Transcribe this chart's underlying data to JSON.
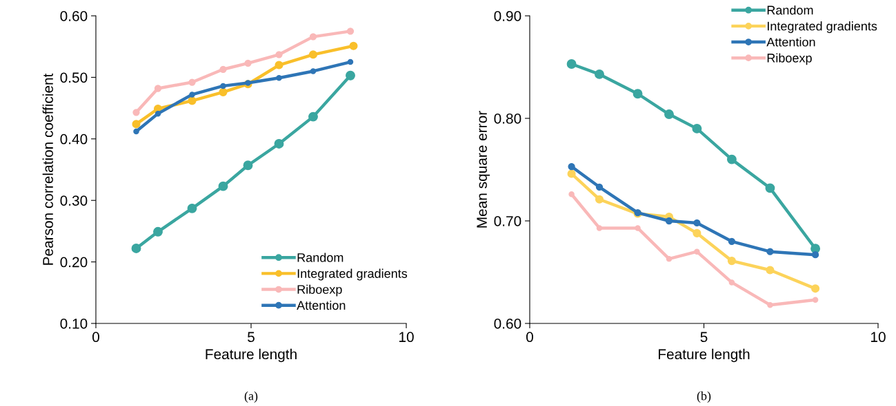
{
  "chart_data": [
    {
      "type": "line",
      "xlabel": "Feature length",
      "ylabel": "Pearson correlation coefficient",
      "annotations": [
        "(a)"
      ],
      "x": [
        1.3,
        2.0,
        3.1,
        4.1,
        4.9,
        5.9,
        7.0,
        8.2
      ],
      "xlim": [
        0,
        10
      ],
      "xticks": [
        0,
        5,
        10
      ],
      "ylim": [
        0.1,
        0.6
      ],
      "yticks": [
        {
          "value": 0.1,
          "label": "0.10"
        },
        {
          "value": 0.2,
          "label": "0.20"
        },
        {
          "value": 0.3,
          "label": "0.30"
        },
        {
          "value": 0.4,
          "label": "0.40"
        },
        {
          "value": 0.5,
          "label": "0.50"
        },
        {
          "value": 0.6,
          "label": "0.60"
        }
      ],
      "legend": "bottom right",
      "marker": "circle",
      "line_style": "solid",
      "series": [
        {
          "name": "Random",
          "color": "#3aa6a0",
          "values": [
            0.222,
            0.249,
            0.287,
            0.323,
            0.357,
            0.392,
            0.436,
            0.503
          ]
        },
        {
          "name": "Integrated gradients",
          "color": "#f9bf2a",
          "x": [
            1.3,
            2.0,
            3.1,
            4.1,
            4.9,
            5.9,
            7.0,
            8.3
          ],
          "values": [
            0.424,
            0.449,
            0.462,
            0.476,
            0.489,
            0.52,
            0.537,
            0.551
          ]
        },
        {
          "name": "Riboexp",
          "color": "#f9b8b8",
          "values": [
            0.443,
            0.482,
            0.492,
            0.513,
            0.523,
            0.537,
            0.566,
            0.575
          ]
        },
        {
          "name": "Attention",
          "color": "#2e75b6",
          "values": [
            0.412,
            0.441,
            0.472,
            0.486,
            0.491,
            0.499,
            0.51,
            0.525
          ]
        }
      ]
    },
    {
      "type": "line",
      "xlabel": "Feature length",
      "ylabel": "Mean square error",
      "annotations": [
        "(b)"
      ],
      "x": [
        1.2,
        2.0,
        3.1,
        4.0,
        4.8,
        5.8,
        6.9,
        8.2
      ],
      "xlim": [
        0,
        10
      ],
      "xticks": [
        0,
        5,
        10
      ],
      "ylim": [
        0.6,
        0.9
      ],
      "yticks": [
        {
          "value": 0.6,
          "label": "0.60"
        },
        {
          "value": 0.7,
          "label": "0.70"
        },
        {
          "value": 0.8,
          "label": "0.80"
        },
        {
          "value": 0.9,
          "label": "0.90"
        }
      ],
      "legend": "top right",
      "marker": "circle",
      "line_style": "solid",
      "series": [
        {
          "name": "Random",
          "color": "#3aa6a0",
          "values": [
            0.853,
            0.843,
            0.824,
            0.804,
            0.79,
            0.76,
            0.732,
            0.673
          ]
        },
        {
          "name": "Integrated gradients",
          "color": "#fcd35a",
          "values": [
            0.746,
            0.721,
            0.707,
            0.704,
            0.688,
            0.661,
            0.652,
            0.634
          ]
        },
        {
          "name": "Attention",
          "color": "#2e75b6",
          "values": [
            0.753,
            0.733,
            0.708,
            0.7,
            0.698,
            0.68,
            0.67,
            0.667
          ]
        },
        {
          "name": "Riboexp",
          "color": "#f9b8b8",
          "values": [
            0.726,
            0.693,
            0.693,
            0.663,
            0.67,
            0.64,
            0.618,
            0.623
          ]
        }
      ]
    }
  ]
}
